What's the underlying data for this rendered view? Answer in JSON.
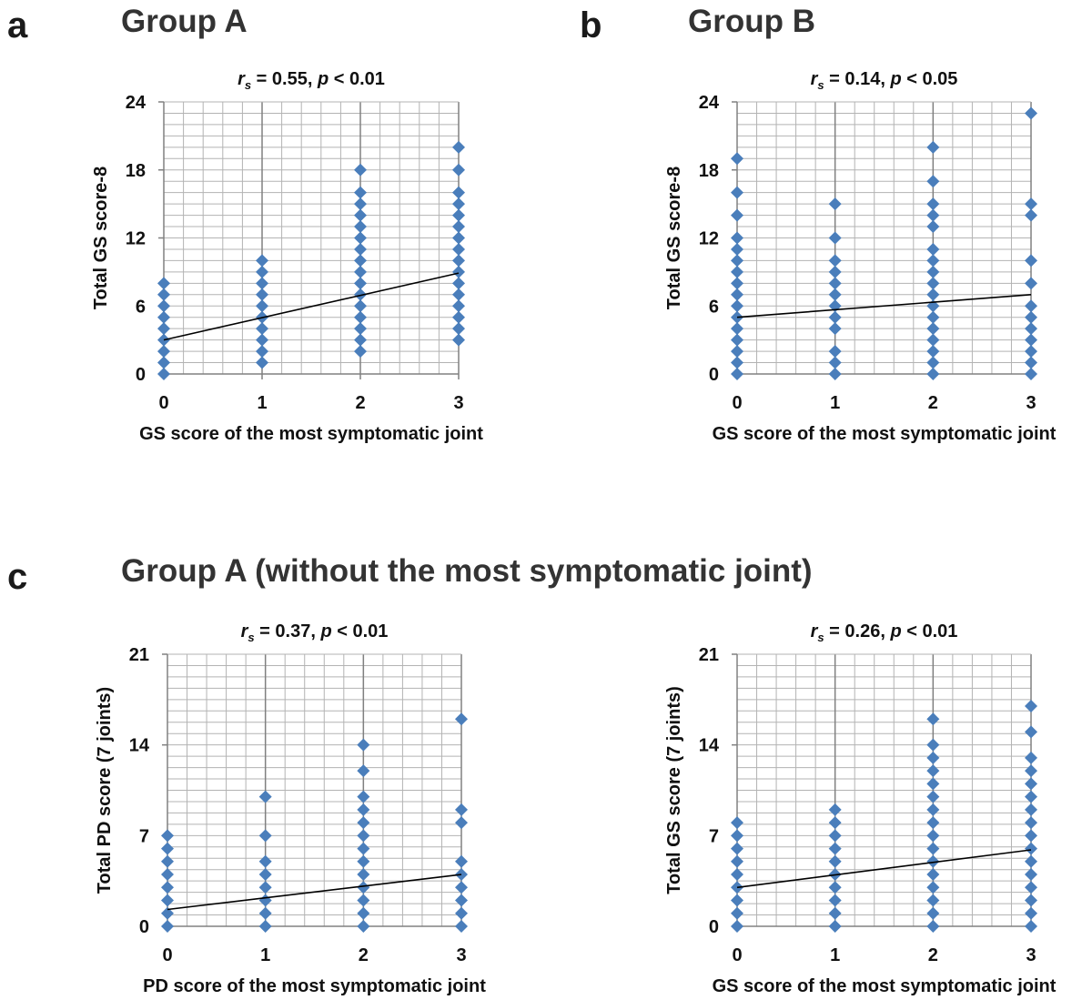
{
  "panel_labels": {
    "a": "a",
    "b": "b",
    "c": "c"
  },
  "titles": {
    "group_a": "Group A",
    "group_b": "Group B",
    "group_c": "Group A  (without the most symptomatic joint)"
  },
  "colors": {
    "marker": "#4a7ebb",
    "trend": "#000000",
    "grid": "#b3b3b3",
    "axis": "#808080"
  },
  "chart_data": [
    {
      "type": "scatter",
      "panel": "a",
      "stat": {
        "r": "r",
        "sub": "s",
        "r_value": " = 0.55,  ",
        "p": "p",
        "p_value": " < 0.01"
      },
      "xlabel": "GS score of the most symptomatic joint",
      "ylabel": "Total GS score-8",
      "xlim": [
        0,
        3
      ],
      "ylim": [
        0,
        24
      ],
      "x_ticks": [
        "0",
        "1",
        "2",
        "3"
      ],
      "y_ticks": [
        "0",
        "6",
        "12",
        "18",
        "24"
      ],
      "grid": true,
      "points": [
        {
          "x": 0,
          "y": [
            0,
            1,
            2,
            3,
            4,
            5,
            6,
            7,
            8
          ]
        },
        {
          "x": 1,
          "y": [
            1,
            2,
            3,
            4,
            5,
            6,
            7,
            8,
            9,
            10
          ]
        },
        {
          "x": 2,
          "y": [
            2,
            3,
            4,
            5,
            6,
            7,
            8,
            9,
            10,
            11,
            12,
            13,
            14,
            15,
            16,
            18
          ]
        },
        {
          "x": 3,
          "y": [
            3,
            4,
            5,
            6,
            7,
            8,
            9,
            10,
            11,
            12,
            13,
            14,
            15,
            16,
            18,
            20
          ]
        }
      ],
      "trendline": {
        "x": [
          0,
          3
        ],
        "y": [
          3.0,
          8.9
        ]
      }
    },
    {
      "type": "scatter",
      "panel": "b",
      "stat": {
        "r": "r",
        "sub": "s",
        "r_value": " = 0.14,  ",
        "p": "p",
        "p_value": " < 0.05"
      },
      "xlabel": "GS score of the most symptomatic joint",
      "ylabel": "Total GS score-8",
      "xlim": [
        0,
        3
      ],
      "ylim": [
        0,
        24
      ],
      "x_ticks": [
        "0",
        "1",
        "2",
        "3"
      ],
      "y_ticks": [
        "0",
        "6",
        "12",
        "18",
        "24"
      ],
      "grid": true,
      "points": [
        {
          "x": 0,
          "y": [
            0,
            1,
            2,
            3,
            4,
            5,
            6,
            7,
            8,
            9,
            10,
            11,
            12,
            14,
            16,
            19
          ]
        },
        {
          "x": 1,
          "y": [
            0,
            1,
            2,
            4,
            5,
            6,
            7,
            8,
            9,
            10,
            12,
            15
          ]
        },
        {
          "x": 2,
          "y": [
            0,
            1,
            2,
            3,
            4,
            5,
            6,
            7,
            8,
            9,
            10,
            11,
            13,
            14,
            15,
            17,
            20
          ]
        },
        {
          "x": 3,
          "y": [
            0,
            1,
            2,
            3,
            4,
            5,
            6,
            8,
            10,
            14,
            15,
            23
          ]
        }
      ],
      "trendline": {
        "x": [
          0,
          3
        ],
        "y": [
          5.0,
          7.0
        ]
      }
    },
    {
      "type": "scatter",
      "panel": "c-left",
      "stat": {
        "r": "r",
        "sub": "s",
        "r_value": " = 0.37,  ",
        "p": "p",
        "p_value": " < 0.01"
      },
      "xlabel": "PD score of the most symptomatic joint",
      "ylabel": "Total PD score  (7 joints)",
      "xlim": [
        0,
        3
      ],
      "ylim": [
        0,
        21
      ],
      "x_ticks": [
        "0",
        "1",
        "2",
        "3"
      ],
      "y_ticks": [
        "0",
        "7",
        "14",
        "21"
      ],
      "grid": true,
      "points": [
        {
          "x": 0,
          "y": [
            0,
            1,
            2,
            3,
            4,
            5,
            6,
            7
          ]
        },
        {
          "x": 1,
          "y": [
            0,
            1,
            2,
            3,
            4,
            5,
            7,
            10
          ]
        },
        {
          "x": 2,
          "y": [
            0,
            1,
            2,
            3,
            4,
            5,
            6,
            7,
            8,
            9,
            10,
            12,
            14
          ]
        },
        {
          "x": 3,
          "y": [
            0,
            1,
            2,
            3,
            4,
            5,
            8,
            9,
            16
          ]
        }
      ],
      "trendline": {
        "x": [
          0,
          3
        ],
        "y": [
          1.3,
          4.0
        ]
      }
    },
    {
      "type": "scatter",
      "panel": "c-right",
      "stat": {
        "r": "r",
        "sub": "s",
        "r_value": " = 0.26,  ",
        "p": "p",
        "p_value": " < 0.01"
      },
      "xlabel": "GS score of the most symptomatic joint",
      "ylabel": "Total GS score  (7 joints)",
      "xlim": [
        0,
        3
      ],
      "ylim": [
        0,
        21
      ],
      "x_ticks": [
        "0",
        "1",
        "2",
        "3"
      ],
      "y_ticks": [
        "0",
        "7",
        "14",
        "21"
      ],
      "grid": true,
      "points": [
        {
          "x": 0,
          "y": [
            0,
            1,
            2,
            3,
            4,
            5,
            6,
            7,
            8
          ]
        },
        {
          "x": 1,
          "y": [
            0,
            1,
            2,
            3,
            4,
            5,
            6,
            7,
            8,
            9
          ]
        },
        {
          "x": 2,
          "y": [
            0,
            1,
            2,
            3,
            4,
            5,
            6,
            7,
            8,
            9,
            10,
            11,
            12,
            13,
            14,
            16
          ]
        },
        {
          "x": 3,
          "y": [
            0,
            1,
            2,
            3,
            4,
            5,
            6,
            7,
            8,
            9,
            10,
            11,
            12,
            13,
            15,
            17
          ]
        }
      ],
      "trendline": {
        "x": [
          0,
          3
        ],
        "y": [
          3.0,
          5.9
        ]
      }
    }
  ]
}
